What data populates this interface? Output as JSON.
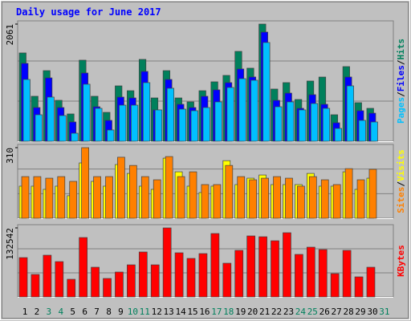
{
  "chart_data": {
    "type": "bar",
    "title": "Daily usage for June 2017",
    "separator": "/",
    "categories": [
      "1",
      "2",
      "3",
      "4",
      "5",
      "6",
      "7",
      "8",
      "9",
      "10",
      "11",
      "12",
      "13",
      "14",
      "15",
      "16",
      "17",
      "18",
      "19",
      "20",
      "21",
      "22",
      "23",
      "24",
      "25",
      "26",
      "27",
      "28",
      "29",
      "30",
      "31"
    ],
    "category_colors": [
      "#000000",
      "#000000",
      "#00805c",
      "#00805c",
      "#000000",
      "#000000",
      "#000000",
      "#000000",
      "#000000",
      "#00805c",
      "#00805c",
      "#000000",
      "#000000",
      "#000000",
      "#000000",
      "#000000",
      "#00805c",
      "#00805c",
      "#000000",
      "#000000",
      "#000000",
      "#000000",
      "#000000",
      "#00805c",
      "#00805c",
      "#000000",
      "#000000",
      "#000000",
      "#000000",
      "#000000",
      "#00805c"
    ],
    "panels": [
      {
        "ylim": [
          0,
          2061
        ],
        "yticks": [
          2061
        ],
        "series": [
          {
            "name": "Hits",
            "color": "#00805c",
            "values": [
              1553,
              791,
              1242,
              720,
              480,
              1426,
              791,
              508,
              974,
              889,
              1440,
              762,
              1242,
              762,
              692,
              889,
              1045,
              1158,
              1581,
              1285,
              2061,
              918,
              1031,
              734,
              1059,
              1129,
              466,
              1313,
              678,
              579,
              null
            ]
          },
          {
            "name": "Files",
            "color": "#0000ff",
            "values": [
              1370,
              593,
              1115,
              593,
              339,
              1200,
              607,
              367,
              777,
              762,
              1228,
              551,
              1087,
              650,
              593,
              791,
              904,
              1031,
              1271,
              1130,
              1920,
              720,
              847,
              579,
              819,
              650,
              325,
              1130,
              537,
              494,
              null
            ]
          },
          {
            "name": "Pages",
            "color": "#00c0ff",
            "values": [
              1087,
              466,
              777,
              452,
              141,
              1003,
              579,
              198,
              635,
              635,
              1031,
              551,
              932,
              565,
              537,
              593,
              692,
              946,
              1101,
              1073,
              1737,
              607,
              692,
              551,
              664,
              579,
              226,
              974,
              367,
              339,
              null
            ]
          }
        ]
      },
      {
        "ylim": [
          0,
          310
        ],
        "yticks": [
          310
        ],
        "series": [
          {
            "name": "Visits",
            "color": "#ffff00",
            "values": [
              141,
              141,
              127,
              141,
              99,
              243,
              162,
              141,
              236,
              197,
              141,
              127,
              264,
              204,
              141,
              113,
              141,
              253,
              148,
              176,
              190,
              148,
              148,
              148,
              197,
              141,
              141,
              204,
              127,
              176,
              null
            ]
          },
          {
            "name": "Sites",
            "color": "#ff8000",
            "values": [
              183,
              183,
              176,
              183,
              162,
              310,
              183,
              183,
              268,
              232,
              183,
              169,
              271,
              183,
              204,
              148,
              148,
              232,
              183,
              169,
              176,
              183,
              176,
              141,
              183,
              169,
              148,
              218,
              169,
              215,
              null
            ]
          }
        ]
      },
      {
        "ylim": [
          0,
          132542
        ],
        "yticks": [
          132542
        ],
        "series": [
          {
            "name": "KBytes",
            "color": "#ff0000",
            "values": [
              75509,
              43148,
              80132,
              67804,
              33902,
              114034,
              57017,
              35443,
              47771,
              61640,
              86296,
              61640,
              132542,
              84755,
              73968,
              83214,
              121739,
              64722,
              89378,
              117116,
              115575,
              107870,
              123280,
              81673,
              95542,
              90919,
              44689,
              89378,
              38525,
              57017,
              null
            ]
          }
        ]
      }
    ]
  }
}
